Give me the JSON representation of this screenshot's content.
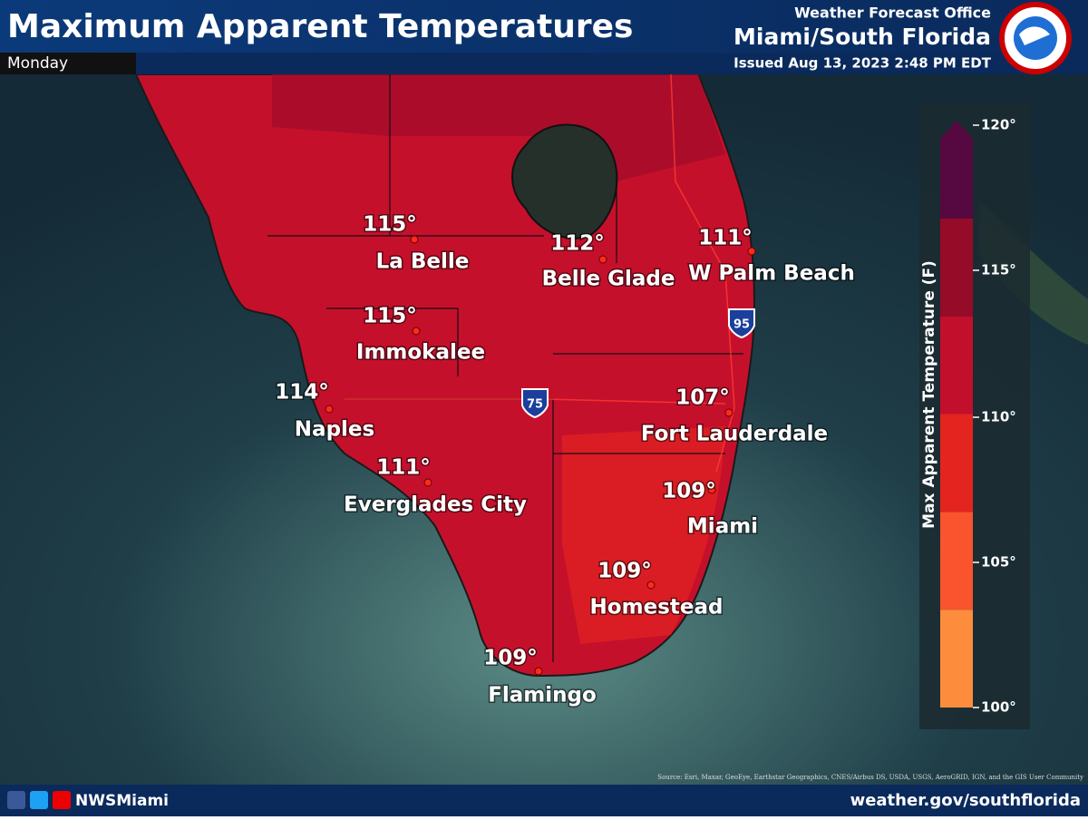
{
  "header": {
    "title": "Maximum Apparent Temperatures",
    "day": "Monday",
    "office": "Weather Forecast Office",
    "location": "Miami/South Florida",
    "issued": "Issued Aug 13, 2023 2:48 PM EDT"
  },
  "cities": [
    {
      "name": "La Belle",
      "temp": "115°"
    },
    {
      "name": "Belle Glade",
      "temp": "112°"
    },
    {
      "name": "W Palm Beach",
      "temp": "111°"
    },
    {
      "name": "Immokalee",
      "temp": "115°"
    },
    {
      "name": "Naples",
      "temp": "114°"
    },
    {
      "name": "Fort Lauderdale",
      "temp": "107°"
    },
    {
      "name": "Everglades City",
      "temp": "111°"
    },
    {
      "name": "Miami",
      "temp": "109°"
    },
    {
      "name": "Homestead",
      "temp": "109°"
    },
    {
      "name": "Flamingo",
      "temp": "109°"
    }
  ],
  "legend": {
    "title": "Max Apparent Temperature (F)",
    "ticks": [
      "120°",
      "115°",
      "110°",
      "105°",
      "100°"
    ],
    "colors": [
      "#fd8d3c",
      "#f9542e",
      "#e3241f",
      "#c20f2c",
      "#960b27",
      "#560840"
    ]
  },
  "map": {
    "interstates": [
      "95",
      "75"
    ],
    "source": "Source: Esri, Maxar, GeoEye, Earthstar Geographics, CNES/Airbus DS, USDA, USGS, AeroGRID, IGN, and the GIS User Community"
  },
  "footer": {
    "handle": "NWSMiami",
    "url": "weather.gov/southflorida"
  }
}
